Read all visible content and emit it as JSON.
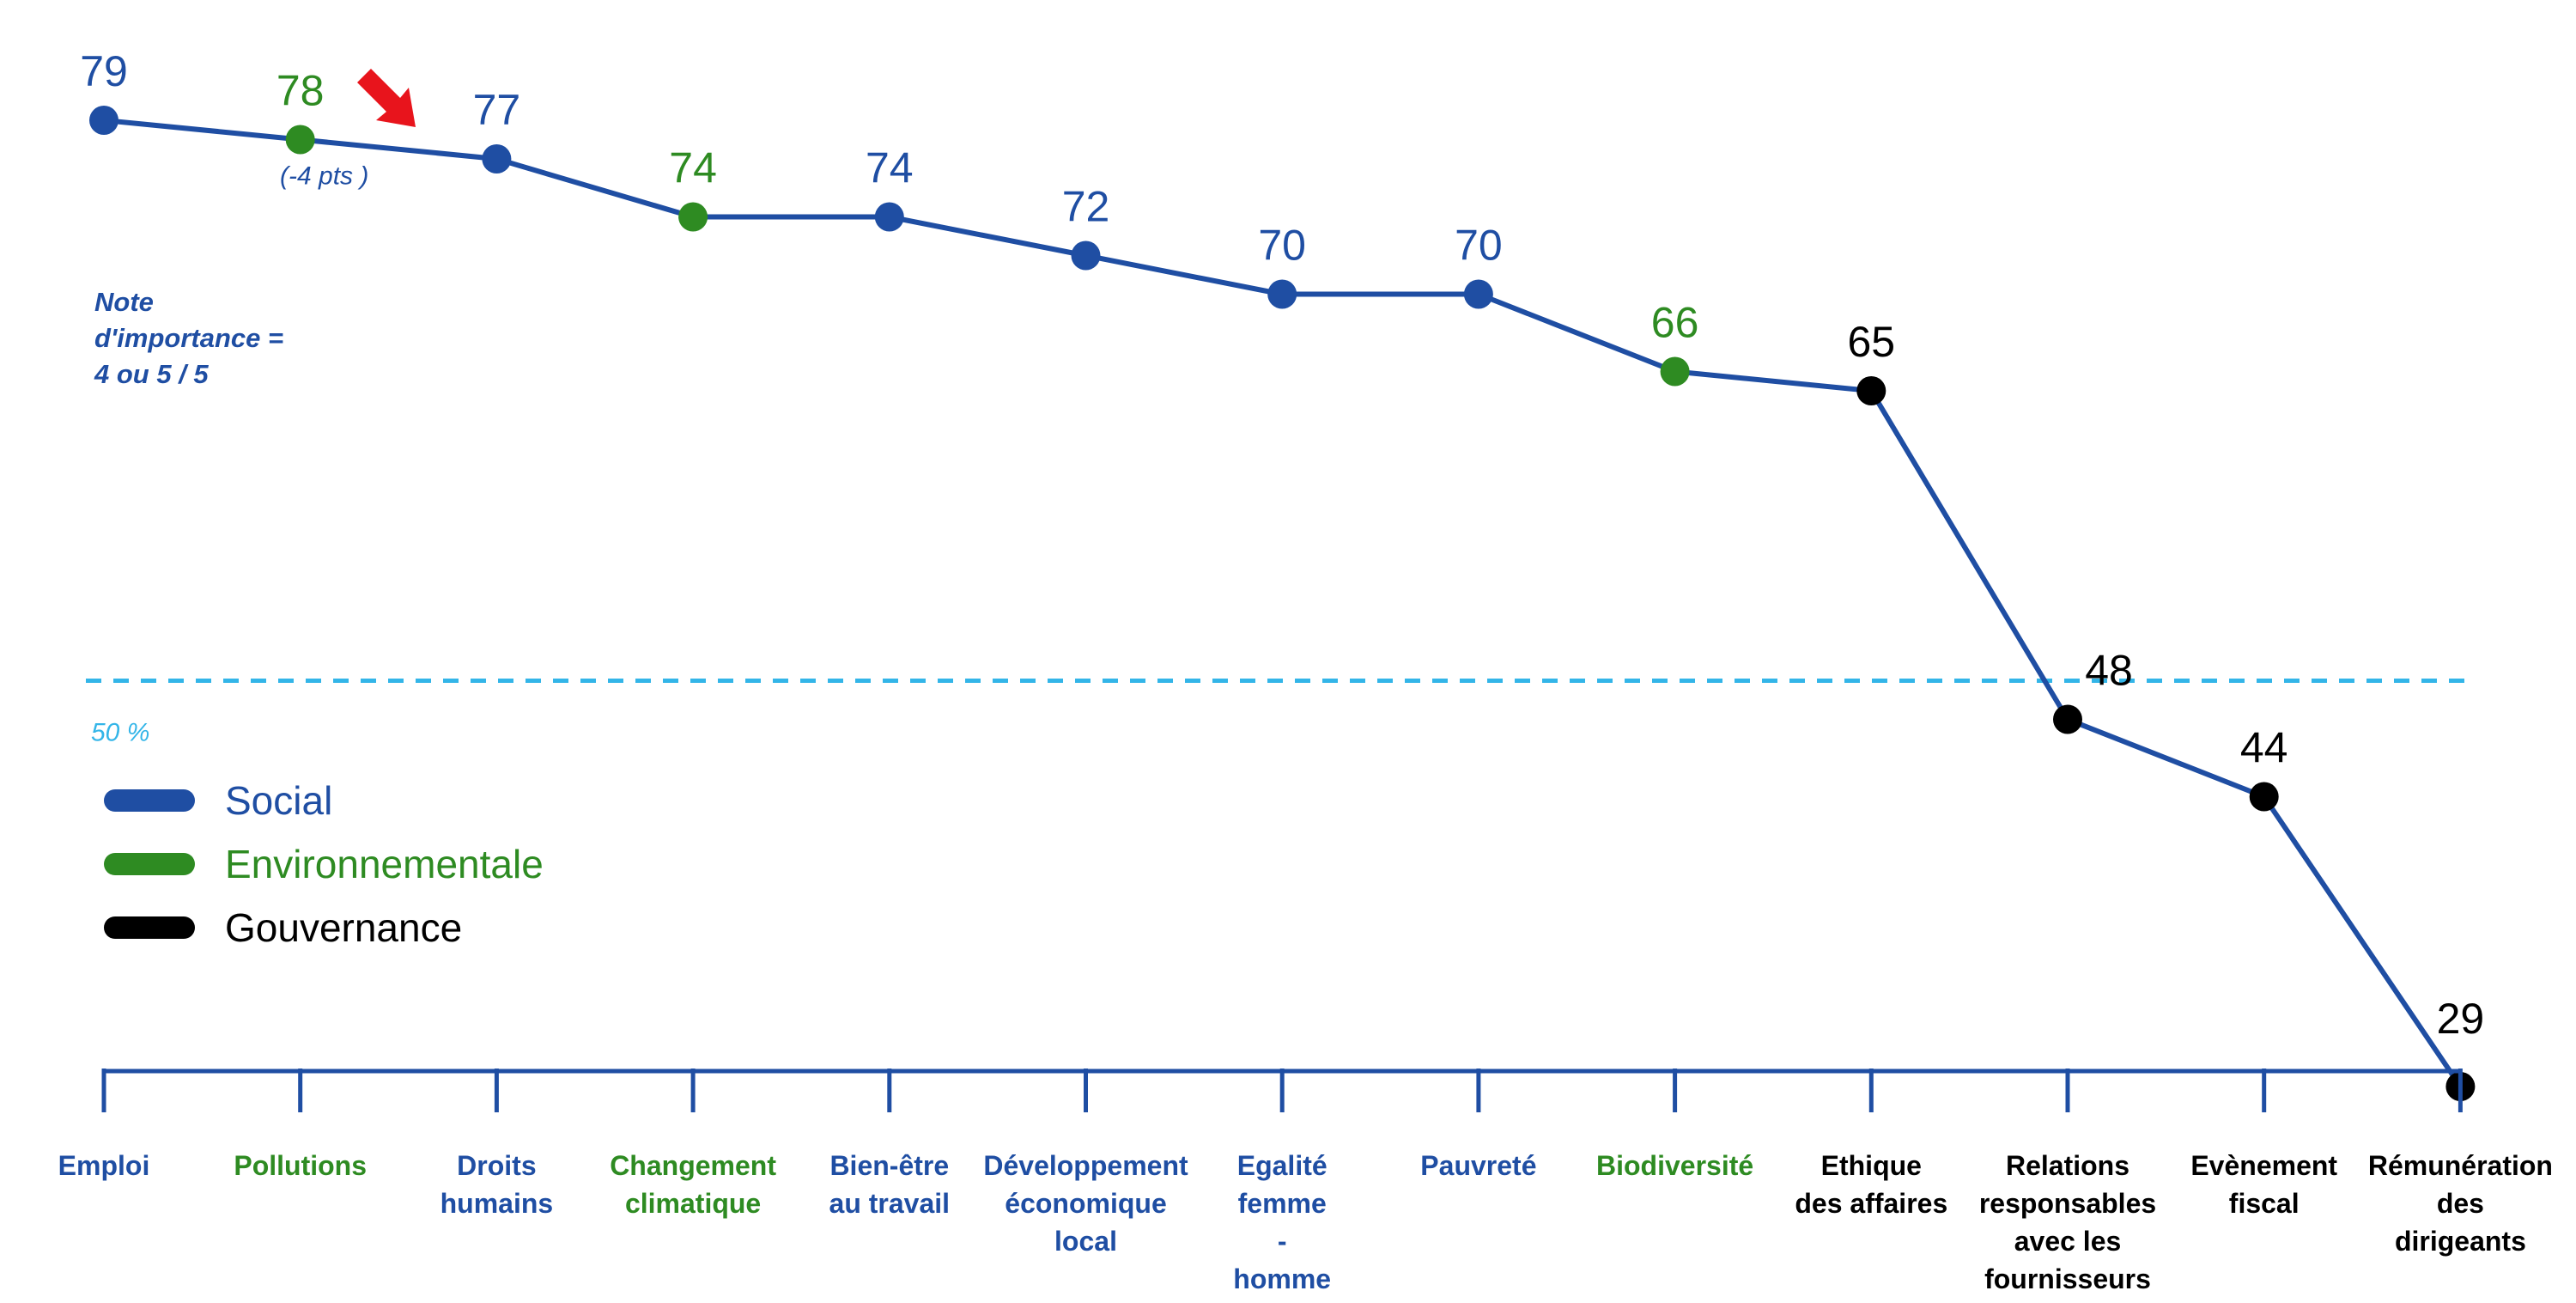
{
  "colors": {
    "social": "#1f4ea3",
    "environnementale": "#2e8b22",
    "gouvernance": "#000000",
    "threshold": "#33b5e8",
    "arrow": "#e8141c"
  },
  "chart_data": {
    "type": "line",
    "ylim": [
      0,
      100
    ],
    "threshold": {
      "value": 50,
      "label": "50 %"
    },
    "note": [
      "Note",
      "d'importance =",
      "4 ou 5 / 5"
    ],
    "legend": [
      {
        "name": "Social",
        "category": "social"
      },
      {
        "name": "Environnementale",
        "category": "environnementale"
      },
      {
        "name": "Gouvernance",
        "category": "gouvernance"
      }
    ],
    "annotation": {
      "index": 1,
      "text": "(-4 pts )",
      "arrow_icon": "down-right-arrow-icon"
    },
    "points": [
      {
        "label": [
          "Emploi"
        ],
        "value": 79,
        "category": "social"
      },
      {
        "label": [
          "Pollutions"
        ],
        "value": 78,
        "category": "environnementale"
      },
      {
        "label": [
          "Droits",
          "humains"
        ],
        "value": 77,
        "category": "social"
      },
      {
        "label": [
          "Changement",
          "climatique"
        ],
        "value": 74,
        "category": "environnementale"
      },
      {
        "label": [
          "Bien-être",
          "au travail"
        ],
        "value": 74,
        "category": "social"
      },
      {
        "label": [
          "Développement",
          "économique",
          "local"
        ],
        "value": 72,
        "category": "social"
      },
      {
        "label": [
          "Egalité",
          "femme",
          "-",
          "homme"
        ],
        "value": 70,
        "category": "social"
      },
      {
        "label": [
          "Pauvreté"
        ],
        "value": 70,
        "category": "social"
      },
      {
        "label": [
          "Biodiversité"
        ],
        "value": 66,
        "category": "environnementale"
      },
      {
        "label": [
          "Ethique",
          "des affaires"
        ],
        "value": 65,
        "category": "gouvernance"
      },
      {
        "label": [
          "Relations",
          "responsables",
          "avec les",
          "fournisseurs"
        ],
        "value": 48,
        "category": "gouvernance"
      },
      {
        "label": [
          "Evènement",
          "fiscal"
        ],
        "value": 44,
        "category": "gouvernance"
      },
      {
        "label": [
          "Rémunération",
          "des",
          "dirigeants"
        ],
        "value": 29,
        "category": "gouvernance"
      }
    ]
  }
}
